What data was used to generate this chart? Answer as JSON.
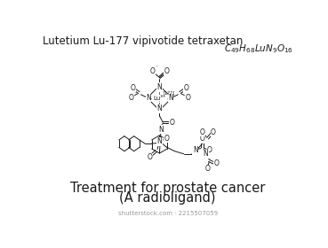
{
  "bg_color": "#ffffff",
  "text_color": "#1a1a1a",
  "gray_color": "#999999",
  "title1": "Lutetium Lu-177 vipivotide tetraxetan",
  "formula": "$C_{49}H_{68}LuN_9O_{16}$",
  "bottom1": "Treatment for prostate cancer",
  "bottom2": "(A radioligand)",
  "watermark": "shutterstock.com · 2215507059",
  "fig_w": 3.69,
  "fig_h": 2.8,
  "dpi": 100
}
